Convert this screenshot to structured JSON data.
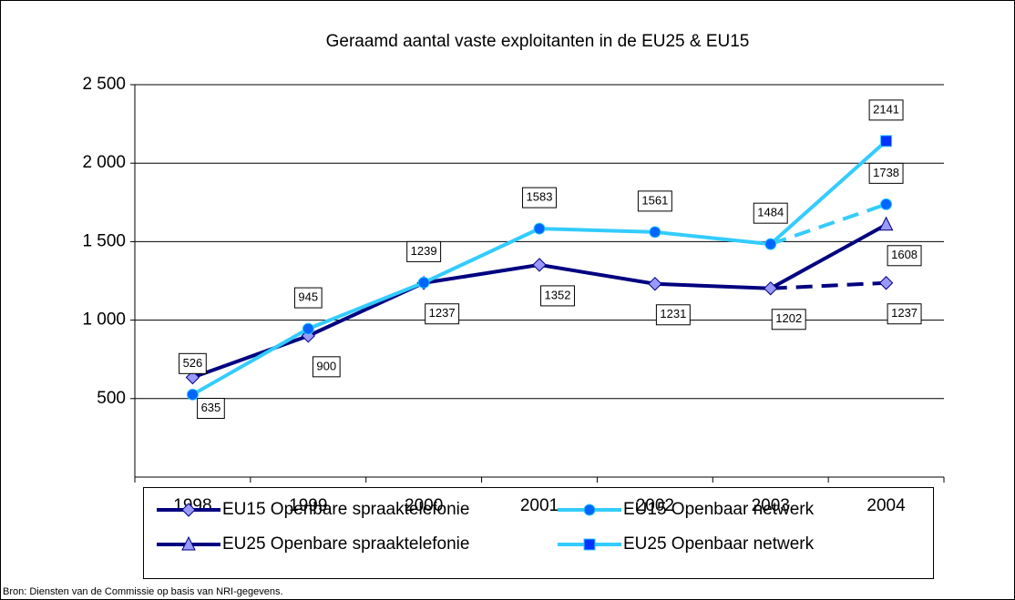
{
  "chart_data": {
    "type": "line",
    "title": "Geraamd aantal vaste exploitanten in de EU25 & EU15",
    "source": "Bron: Diensten van de Commissie op basis van NRI-gegevens.",
    "categories": [
      "1998",
      "1999",
      "2000",
      "2001",
      "2002",
      "2003",
      "2004"
    ],
    "series": [
      {
        "name": "EU15 Openbare spraaktelefonie",
        "color": "#000080",
        "marker": "diamond",
        "marker_color": "#9999ff",
        "dashed_from": "2003",
        "values": [
          635,
          900,
          1237,
          1352,
          1231,
          1202,
          1237
        ]
      },
      {
        "name": "EU15 Openbaar netwerk",
        "color": "#33ccff",
        "marker": "circle",
        "marker_color": "#0066ff",
        "dashed_from": "2003",
        "values": [
          526,
          945,
          1239,
          1583,
          1561,
          1484,
          1738
        ]
      },
      {
        "name": "EU25 Openbare spraaktelefonie",
        "color": "#000080",
        "marker": "triangle",
        "marker_color": "#9999ff",
        "values": [
          null,
          null,
          null,
          null,
          null,
          1202,
          1608
        ]
      },
      {
        "name": "EU25 Openbaar netwerk",
        "color": "#33ccff",
        "marker": "square",
        "marker_color": "#0033ff",
        "values": [
          null,
          null,
          null,
          null,
          null,
          1484,
          2141
        ]
      }
    ],
    "ylim": [
      0,
      2500
    ],
    "yticks": [
      500,
      {
        "value": 1000,
        "label": "1 000"
      },
      {
        "value": 1500,
        "label": "1 500"
      },
      {
        "value": 2000,
        "label": "2 000"
      },
      {
        "value": 2500,
        "label": "2 500"
      }
    ],
    "grid": true
  }
}
